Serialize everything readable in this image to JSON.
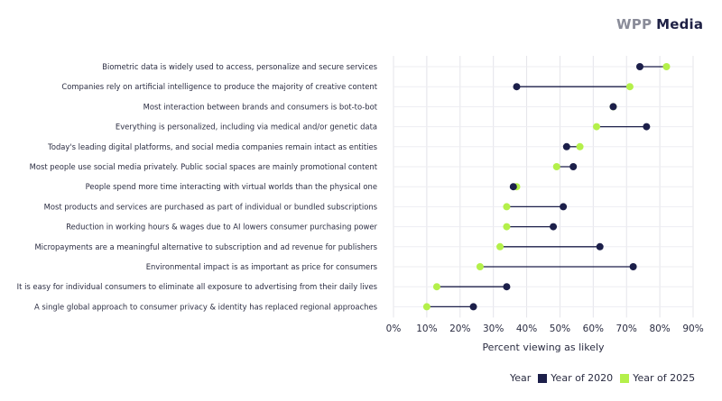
{
  "logo": {
    "part1": "WPP",
    "part2": "Media"
  },
  "chart_data": {
    "type": "dumbbell",
    "xlabel": "Percent viewing as likely",
    "xlim": [
      0,
      90
    ],
    "xticks": [
      "0%",
      "10%",
      "20%",
      "30%",
      "40%",
      "50%",
      "60%",
      "70%",
      "80%",
      "90%"
    ],
    "grid": true,
    "legend": {
      "title": "Year",
      "placement": "bottom-right"
    },
    "categories": [
      "Biometric data is widely used to access, personalize and secure services",
      "Companies rely on artificial intelligence to produce the majority of creative content",
      "Most interaction between brands and consumers is bot-to-bot",
      "Everything is personalized, including via medical and/or genetic data",
      "Today's leading digital platforms, and social media companies remain intact as entities",
      "Most people use social media privately. Public social spaces are mainly promotional content",
      "People spend more time interacting with virtual worlds than the physical one",
      "Most products and services are purchased as part of individual or bundled subscriptions",
      "Reduction in working hours & wages due to AI lowers consumer purchasing power",
      "Micropayments are a meaningful alternative to subscription and ad revenue for publishers",
      "Environmental impact is as important as price for consumers",
      "It is easy for individual consumers to eliminate all exposure to advertising from their daily lives",
      "A single global approach to consumer privacy & identity has replaced regional approaches"
    ],
    "series": [
      {
        "name": "Year of 2020",
        "color": "#1c1f4a",
        "values": [
          74,
          37,
          66,
          76,
          52,
          54,
          36,
          51,
          48,
          62,
          72,
          34,
          24
        ]
      },
      {
        "name": "Year of 2025",
        "color": "#b4f04a",
        "values": [
          82,
          71,
          66,
          61,
          56,
          49,
          37,
          34,
          34,
          32,
          26,
          13,
          10
        ]
      }
    ]
  }
}
